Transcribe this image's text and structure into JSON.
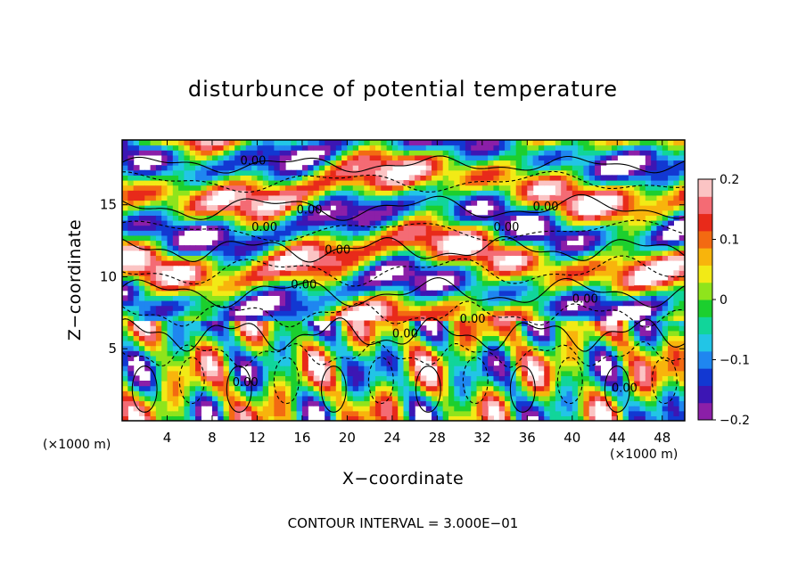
{
  "chart_data": {
    "type": "heatmap",
    "title": "disturbunce of potential temperature",
    "xlabel": "X−coordinate",
    "ylabel": "Z−coordinate",
    "x_unit": "(×1000 m)",
    "xlim": [
      0,
      50
    ],
    "ylim": [
      0,
      19.5
    ],
    "x_ticks": [
      4,
      8,
      12,
      16,
      20,
      24,
      28,
      32,
      36,
      40,
      44,
      48
    ],
    "y_ticks": [
      5,
      10,
      15
    ],
    "colorbar": {
      "ticks": [
        "0.2",
        "0.1",
        "0",
        "−0.1",
        "−0.2"
      ],
      "tick_values": [
        0.2,
        0.1,
        0,
        -0.1,
        -0.2
      ],
      "range": [
        -0.2,
        0.2
      ],
      "colors": [
        "#8b1fa8",
        "#3c16b4",
        "#1238d2",
        "#1f86f0",
        "#22c5e6",
        "#11d59a",
        "#1ccf2e",
        "#8fe41c",
        "#f2ea16",
        "#f8b40c",
        "#f36a12",
        "#e82a1a",
        "#f46b74",
        "#fbc4c4"
      ]
    },
    "contour_label": "0.00",
    "contour_interval_text": "CONTOUR INTERVAL = 3.000E−01"
  }
}
